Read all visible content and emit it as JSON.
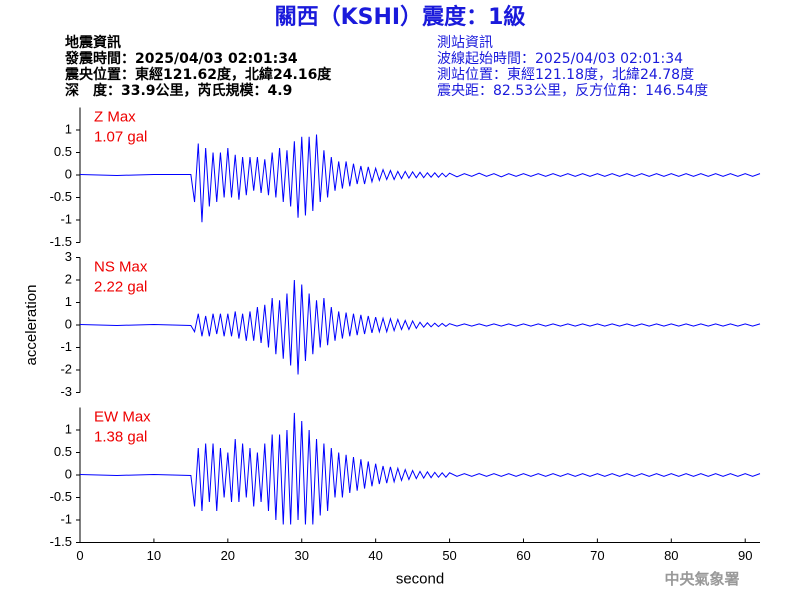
{
  "header": {
    "title": "關西（KSHI）震度：1級",
    "left": [
      "地震資訊",
      "發震時間：2025/04/03 02:01:34",
      "震央位置：東經121.62度，北緯24.16度",
      "深　度：33.9公里，芮氏規模：4.9"
    ],
    "right": [
      "測站資訊",
      "波線起始時間：2025/04/03 02:01:34",
      "測站位置：東經121.18度，北緯24.78度",
      "震央距：82.53公里，反方位角：146.54度"
    ]
  },
  "footer": "中央氣象署",
  "chart_data": [
    {
      "type": "line",
      "label": "Z Max",
      "annotation": "1.07 gal",
      "color": "#0000ff",
      "label_color": "#ee0000",
      "xlim": [
        0,
        92
      ],
      "ylim": [
        -1.5,
        1.5
      ],
      "yticks": [
        -1.5,
        -1,
        -0.5,
        0,
        0.5,
        1
      ],
      "x": [
        0,
        5,
        10,
        15,
        15.5,
        16,
        16.5,
        17,
        17.5,
        18,
        18.5,
        19,
        19.5,
        20,
        20.5,
        21,
        21.5,
        22,
        22.5,
        23,
        23.5,
        24,
        24.5,
        25,
        25.5,
        26,
        26.5,
        27,
        27.5,
        28,
        28.5,
        29,
        29.5,
        30,
        30.5,
        31,
        31.5,
        32,
        32.5,
        33,
        33.5,
        34,
        34.5,
        35,
        35.5,
        36,
        36.5,
        37,
        37.5,
        38,
        38.5,
        39,
        39.5,
        40,
        40.5,
        41,
        41.5,
        42,
        42.5,
        43,
        43.5,
        44,
        44.5,
        45,
        45.5,
        46,
        46.5,
        47,
        47.5,
        48,
        48.5,
        49,
        49.5,
        50,
        51,
        52,
        53,
        54,
        55,
        56,
        57,
        58,
        59,
        60,
        61,
        62,
        63,
        64,
        65,
        66,
        67,
        68,
        69,
        70,
        71,
        72,
        73,
        74,
        75,
        76,
        77,
        78,
        79,
        80,
        81,
        82,
        83,
        84,
        85,
        86,
        87,
        88,
        89,
        90,
        91,
        92
      ],
      "values": [
        0.01,
        -0.01,
        0.01,
        0.01,
        -0.6,
        0.7,
        -1.05,
        0.6,
        -0.7,
        0.5,
        -0.6,
        0.5,
        -0.5,
        0.6,
        -0.5,
        0.45,
        -0.55,
        0.4,
        -0.45,
        0.4,
        -0.35,
        0.4,
        -0.4,
        0.35,
        -0.45,
        0.5,
        -0.5,
        0.6,
        -0.6,
        0.55,
        -0.7,
        0.75,
        -0.95,
        0.85,
        -0.9,
        0.85,
        -0.8,
        0.9,
        -0.6,
        0.55,
        -0.5,
        0.4,
        -0.35,
        0.3,
        -0.3,
        0.3,
        -0.25,
        0.25,
        -0.2,
        0.2,
        -0.2,
        0.18,
        -0.15,
        0.15,
        -0.12,
        0.12,
        -0.1,
        0.1,
        -0.1,
        0.08,
        -0.08,
        0.08,
        -0.07,
        0.07,
        -0.06,
        0.06,
        -0.06,
        0.05,
        -0.05,
        0.05,
        -0.05,
        0.04,
        -0.04,
        0.04,
        -0.04,
        0.03,
        -0.03,
        0.04,
        -0.03,
        0.03,
        -0.04,
        0.03,
        -0.03,
        0.03,
        -0.03,
        0.03,
        -0.03,
        0.03,
        -0.03,
        0.03,
        -0.03,
        0.03,
        -0.03,
        0.03,
        -0.03,
        0.03,
        -0.03,
        0.03,
        -0.03,
        0.03,
        -0.03,
        0.03,
        -0.03,
        0.03,
        -0.03,
        0.03,
        -0.03,
        0.03,
        -0.03,
        0.03,
        -0.03,
        0.03,
        -0.03,
        0.03,
        -0.03,
        0.03
      ]
    },
    {
      "type": "line",
      "label": "NS Max",
      "annotation": "2.22 gal",
      "color": "#0000ff",
      "label_color": "#ee0000",
      "ylabel": "acceleration",
      "xlim": [
        0,
        92
      ],
      "ylim": [
        -3,
        3
      ],
      "yticks": [
        -3,
        -2,
        -1,
        0,
        1,
        2,
        3
      ],
      "x": [
        0,
        5,
        10,
        15,
        15.5,
        16,
        16.5,
        17,
        17.5,
        18,
        18.5,
        19,
        19.5,
        20,
        20.5,
        21,
        21.5,
        22,
        22.5,
        23,
        23.5,
        24,
        24.5,
        25,
        25.5,
        26,
        26.5,
        27,
        27.5,
        28,
        28.5,
        29,
        29.5,
        30,
        30.5,
        31,
        31.5,
        32,
        32.5,
        33,
        33.5,
        34,
        34.5,
        35,
        35.5,
        36,
        36.5,
        37,
        37.5,
        38,
        38.5,
        39,
        39.5,
        40,
        40.5,
        41,
        41.5,
        42,
        42.5,
        43,
        43.5,
        44,
        44.5,
        45,
        45.5,
        46,
        46.5,
        47,
        47.5,
        48,
        48.5,
        49,
        49.5,
        50,
        51,
        52,
        53,
        54,
        55,
        56,
        57,
        58,
        59,
        60,
        61,
        62,
        63,
        64,
        65,
        66,
        67,
        68,
        69,
        70,
        71,
        72,
        73,
        74,
        75,
        76,
        77,
        78,
        79,
        80,
        81,
        82,
        83,
        84,
        85,
        86,
        87,
        88,
        89,
        90,
        91,
        92
      ],
      "values": [
        0.02,
        -0.02,
        0.02,
        -0.02,
        -0.3,
        0.5,
        -0.5,
        0.4,
        -0.5,
        0.5,
        -0.4,
        0.5,
        -0.5,
        0.5,
        -0.5,
        0.6,
        -0.6,
        0.5,
        -0.7,
        0.6,
        -0.7,
        0.8,
        -0.8,
        0.9,
        -1,
        1.2,
        -1.3,
        1.1,
        -1.5,
        1.4,
        -1.8,
        2,
        -2.2,
        1.8,
        -1.6,
        1.4,
        -1.3,
        1.1,
        -1,
        1.2,
        -0.9,
        0.8,
        -0.7,
        0.6,
        -0.6,
        0.55,
        -0.5,
        0.5,
        -0.45,
        0.45,
        -0.4,
        0.4,
        -0.35,
        0.35,
        -0.3,
        0.3,
        -0.3,
        0.28,
        -0.25,
        0.25,
        -0.2,
        0.2,
        -0.2,
        0.18,
        -0.15,
        0.12,
        -0.1,
        0.1,
        -0.08,
        0.08,
        -0.07,
        0.07,
        -0.06,
        0.06,
        -0.05,
        0.05,
        -0.05,
        0.05,
        -0.05,
        0.05,
        -0.05,
        0.05,
        -0.05,
        0.05,
        -0.05,
        0.05,
        -0.05,
        0.05,
        -0.05,
        0.05,
        -0.05,
        0.05,
        -0.05,
        0.05,
        -0.05,
        0.05,
        -0.05,
        0.05,
        -0.05,
        0.05,
        -0.05,
        0.05,
        -0.05,
        0.05,
        -0.05,
        0.05,
        -0.05,
        0.05,
        -0.05,
        0.05,
        -0.05,
        0.05,
        -0.05,
        0.05,
        -0.05,
        0.05
      ]
    },
    {
      "type": "line",
      "label": "EW Max",
      "annotation": "1.38 gal",
      "color": "#0000ff",
      "label_color": "#ee0000",
      "xlabel": "second",
      "xlim": [
        0,
        92
      ],
      "xticks": [
        0,
        10,
        20,
        30,
        40,
        50,
        60,
        70,
        80,
        90
      ],
      "ylim": [
        -1.5,
        1.5
      ],
      "yticks": [
        -1.5,
        -1,
        -0.5,
        0,
        0.5,
        1
      ],
      "x": [
        0,
        5,
        10,
        15,
        15.5,
        16,
        16.5,
        17,
        17.5,
        18,
        18.5,
        19,
        19.5,
        20,
        20.5,
        21,
        21.5,
        22,
        22.5,
        23,
        23.5,
        24,
        24.5,
        25,
        25.5,
        26,
        26.5,
        27,
        27.5,
        28,
        28.5,
        29,
        29.5,
        30,
        30.5,
        31,
        31.5,
        32,
        32.5,
        33,
        33.5,
        34,
        34.5,
        35,
        35.5,
        36,
        36.5,
        37,
        37.5,
        38,
        38.5,
        39,
        39.5,
        40,
        40.5,
        41,
        41.5,
        42,
        42.5,
        43,
        43.5,
        44,
        44.5,
        45,
        45.5,
        46,
        46.5,
        47,
        47.5,
        48,
        48.5,
        49,
        49.5,
        50,
        51,
        52,
        53,
        54,
        55,
        56,
        57,
        58,
        59,
        60,
        61,
        62,
        63,
        64,
        65,
        66,
        67,
        68,
        69,
        70,
        71,
        72,
        73,
        74,
        75,
        76,
        77,
        78,
        79,
        80,
        81,
        82,
        83,
        84,
        85,
        86,
        87,
        88,
        89,
        90,
        91,
        92
      ],
      "values": [
        0.01,
        -0.01,
        0.01,
        -0.01,
        -0.7,
        0.6,
        -0.8,
        0.7,
        -0.6,
        0.7,
        -0.8,
        0.6,
        -0.5,
        0.5,
        -0.6,
        0.8,
        -0.6,
        0.7,
        -0.5,
        0.6,
        -0.7,
        0.5,
        -0.6,
        0.7,
        -0.8,
        0.9,
        -1,
        0.9,
        -1.1,
        1,
        -1.1,
        1.38,
        -1,
        1.2,
        -1.1,
        1,
        -1.1,
        0.8,
        -0.9,
        0.7,
        -0.8,
        0.6,
        -0.5,
        0.5,
        -0.5,
        0.45,
        -0.4,
        0.4,
        -0.35,
        0.35,
        -0.3,
        0.3,
        -0.25,
        0.25,
        -0.2,
        0.2,
        -0.18,
        0.18,
        -0.15,
        0.15,
        -0.12,
        0.12,
        -0.1,
        0.1,
        -0.08,
        0.08,
        -0.07,
        0.07,
        -0.06,
        0.06,
        -0.05,
        0.05,
        -0.05,
        0.05,
        -0.03,
        0.03,
        -0.03,
        0.03,
        -0.03,
        0.03,
        -0.03,
        0.03,
        -0.03,
        0.03,
        -0.03,
        0.03,
        -0.03,
        0.03,
        -0.03,
        0.03,
        -0.03,
        0.03,
        -0.03,
        0.03,
        -0.03,
        0.03,
        -0.03,
        0.03,
        -0.03,
        0.03,
        -0.03,
        0.03,
        -0.03,
        0.03,
        -0.03,
        0.03,
        -0.03,
        0.03,
        -0.03,
        0.03,
        -0.03,
        0.03,
        -0.03,
        0.03,
        -0.03,
        0.03
      ]
    }
  ]
}
